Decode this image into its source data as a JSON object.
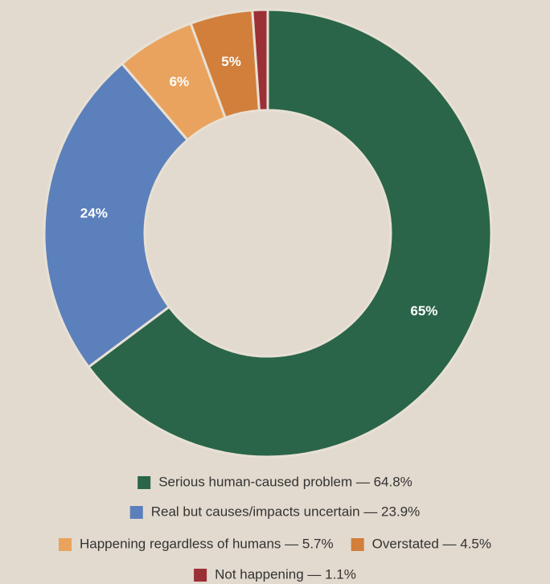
{
  "chart_data": {
    "type": "pie",
    "categories": [
      "Serious human-caused problem — 64.8%",
      "Real but causes/impacts uncertain — 23.9%",
      "Happening regardless of humans — 5.7%",
      "Overstated — 4.5%",
      "Not happening — 1.1%"
    ],
    "values": [
      64.8,
      23.9,
      5.7,
      4.5,
      1.1
    ],
    "value_labels": [
      "65%",
      "24%",
      "6%",
      "5%",
      null
    ],
    "colors": [
      "#2a6549",
      "#5b80bb",
      "#e9a35e",
      "#d17f3a",
      "#9b3037"
    ],
    "donut": true
  }
}
